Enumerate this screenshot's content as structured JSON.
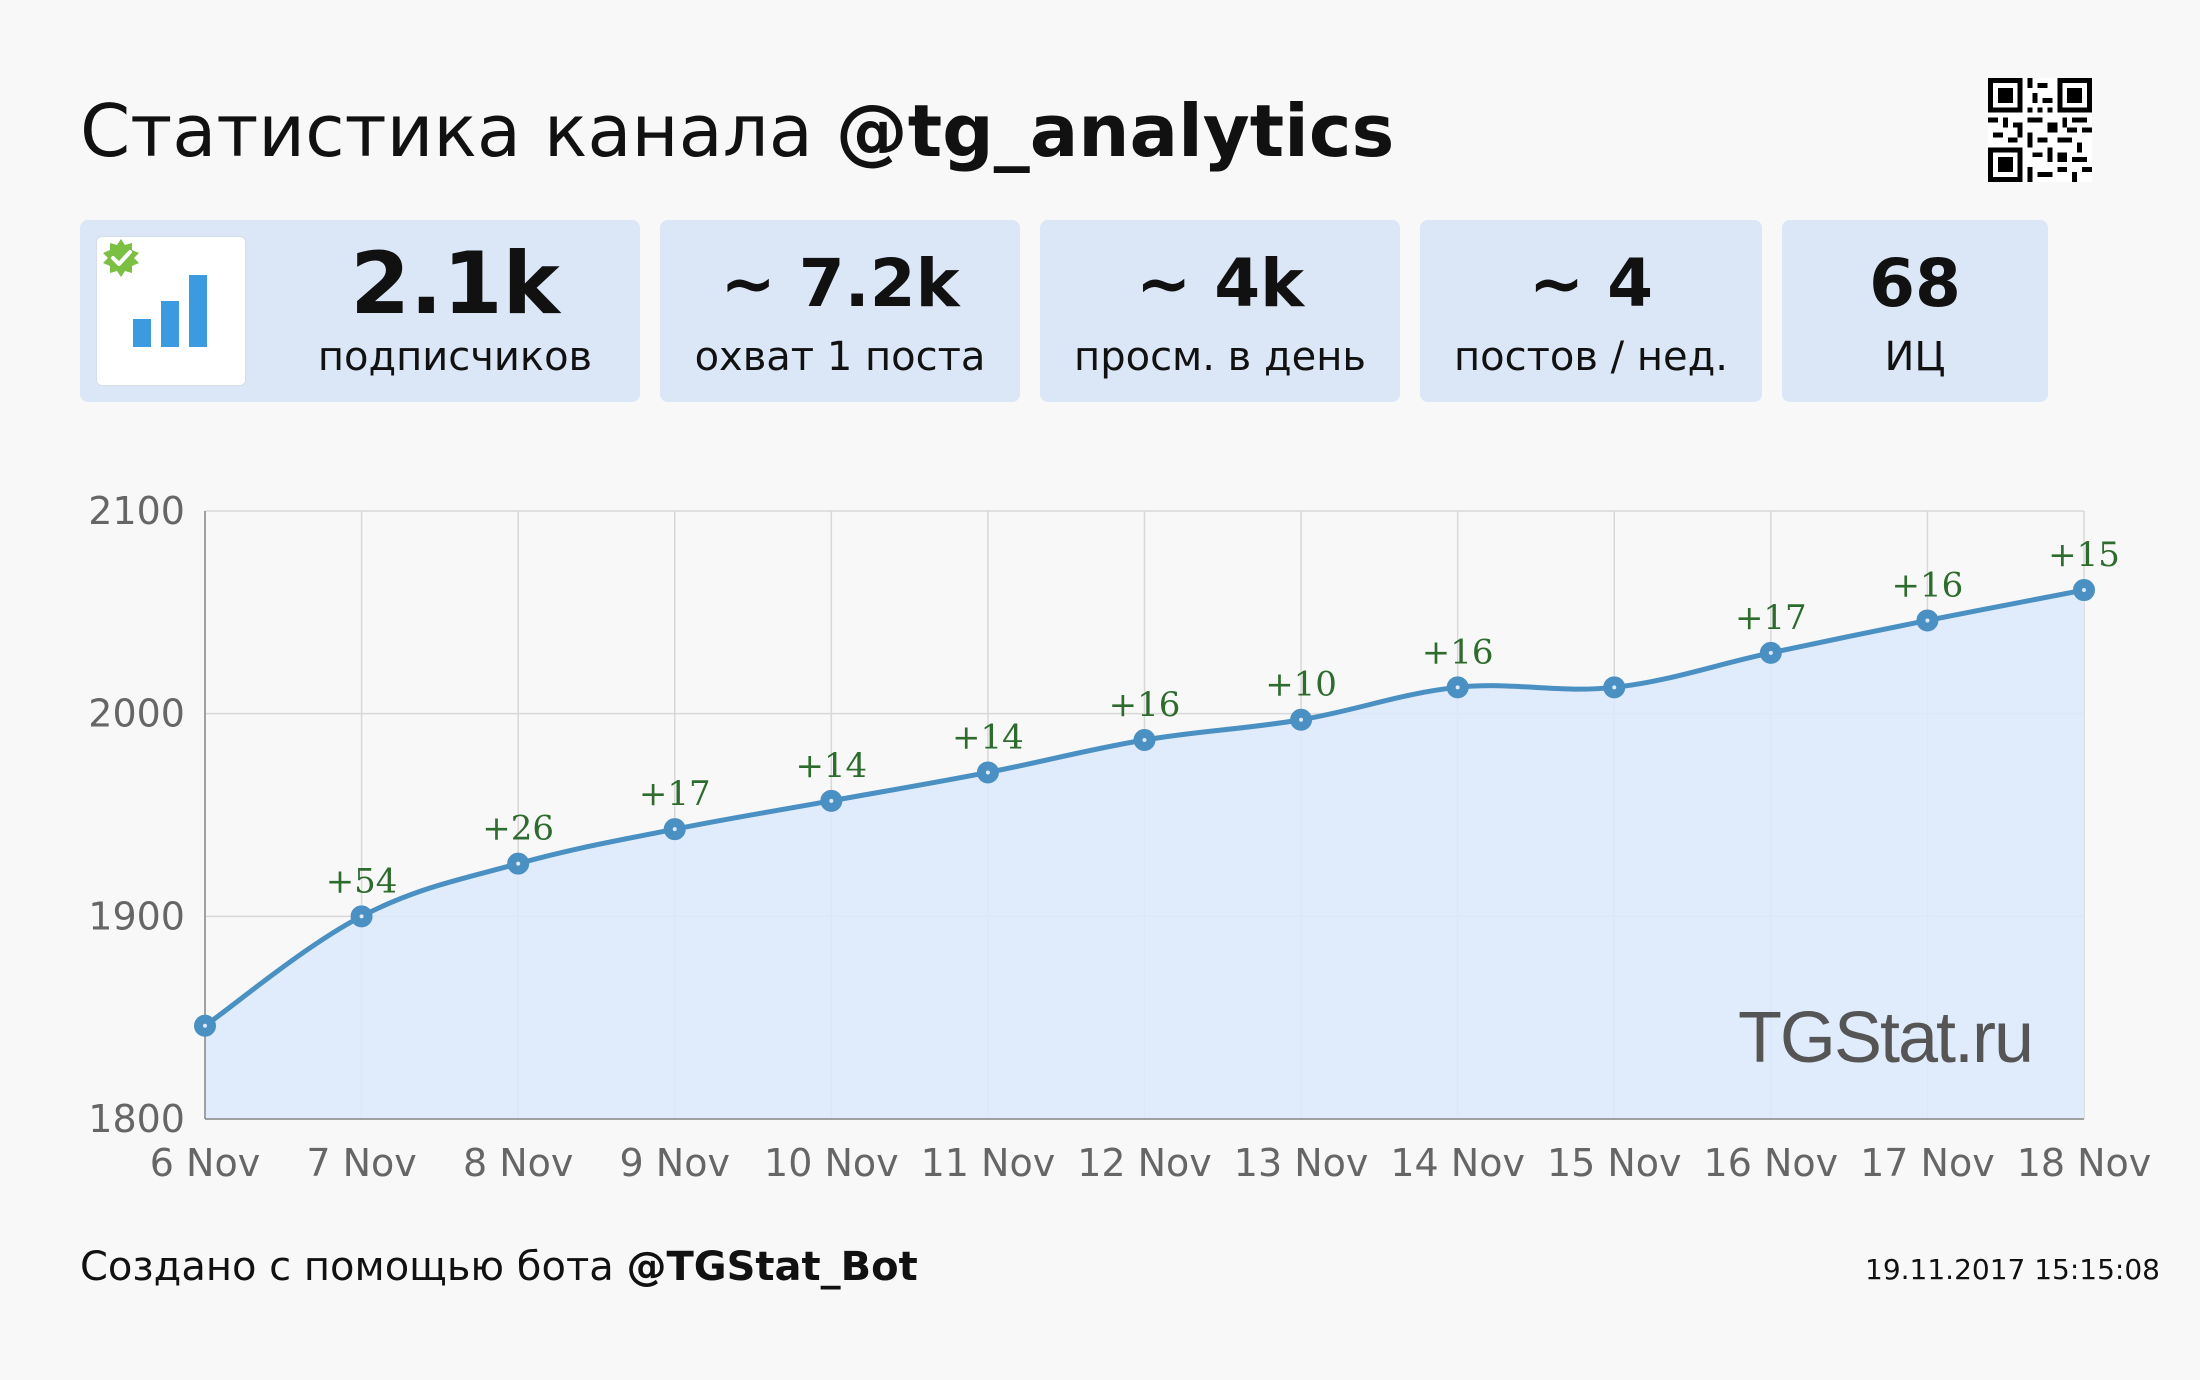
{
  "header": {
    "title_prefix": "Статистика канала",
    "channel": "@tg_analytics"
  },
  "stats": [
    {
      "value": "2.1k",
      "label": "подписчиков"
    },
    {
      "value": "~ 7.2k",
      "label": "охват 1 поста"
    },
    {
      "value": "~ 4k",
      "label": "просм. в день"
    },
    {
      "value": "~ 4",
      "label": "постов / нед."
    },
    {
      "value": "68",
      "label": "ИЦ"
    }
  ],
  "icons": {
    "verified_badge": "verified-badge-icon",
    "channel_logo": "bar-chart-logo-icon",
    "qr": "qr-code-icon"
  },
  "colors": {
    "line": "#4a90c2",
    "area": "#dde9fb",
    "delta_text": "#2e6b2e",
    "card_bg": "#dbe6f7",
    "badge": "#7bc043",
    "logo_bars": "#3c9be0"
  },
  "chart_data": {
    "type": "area",
    "x": [
      "6 Nov",
      "7 Nov",
      "8 Nov",
      "9 Nov",
      "10 Nov",
      "11 Nov",
      "12 Nov",
      "13 Nov",
      "14 Nov",
      "15 Nov",
      "16 Nov",
      "17 Nov",
      "18 Nov"
    ],
    "series": [
      {
        "values": [
          1846,
          1900,
          1926,
          1943,
          1957,
          1971,
          1987,
          1997,
          2013,
          2013,
          2030,
          2046,
          2061
        ]
      }
    ],
    "annotations": [
      "",
      "+54",
      "+26",
      "+17",
      "+14",
      "+14",
      "+16",
      "+10",
      "+16",
      "",
      "+17",
      "+16",
      "+15"
    ],
    "ylim": [
      1800,
      2100
    ],
    "yticks": [
      1800,
      1900,
      2000,
      2100
    ],
    "grid": true,
    "watermark": "TGStat.ru"
  },
  "footer": {
    "prefix": "Создано с помощью бота",
    "bot": "@TGStat_Bot",
    "timestamp": "19.11.2017 15:15:08"
  }
}
